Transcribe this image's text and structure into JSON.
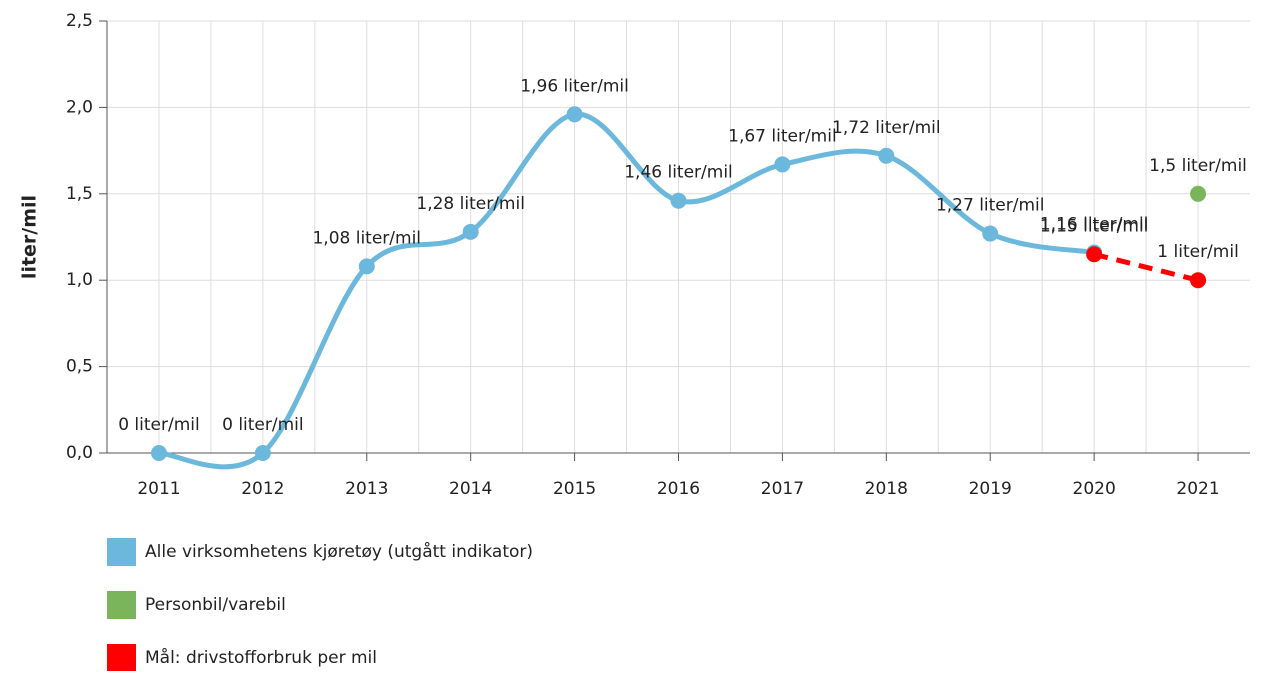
{
  "chart_data": {
    "type": "line",
    "y_label": "liter/mil",
    "categories": [
      "2011",
      "2012",
      "2013",
      "2014",
      "2015",
      "2016",
      "2017",
      "2018",
      "2019",
      "2020",
      "2021"
    ],
    "series": [
      {
        "name": "Alle virksomhetens kjøretøy (utgått indikator)",
        "color": "#6bb8dc",
        "style": "smooth",
        "values": [
          0,
          0,
          1.08,
          1.28,
          1.96,
          1.46,
          1.67,
          1.72,
          1.27,
          1.16,
          null
        ],
        "value_labels": [
          "0 liter/mil",
          "0 liter/mil",
          "1,08 liter/mil",
          "1,28 liter/mil",
          "1,96 liter/mil",
          "1,46 liter/mil",
          "1,67 liter/mil",
          "1,72 liter/mil",
          "1,27 liter/mil",
          "1,16 liter/mil",
          null
        ]
      },
      {
        "name": "Personbil/varebil",
        "color": "#7ab55c",
        "style": "straight",
        "values": [
          null,
          null,
          null,
          null,
          null,
          null,
          null,
          null,
          null,
          null,
          1.5
        ],
        "value_labels": [
          null,
          null,
          null,
          null,
          null,
          null,
          null,
          null,
          null,
          null,
          "1,5 liter/mil"
        ]
      },
      {
        "name": "Mål: drivstofforbruk per mil",
        "color": "#ff0000",
        "style": "dashed",
        "values": [
          null,
          null,
          null,
          null,
          null,
          null,
          null,
          null,
          null,
          1.15,
          1
        ],
        "value_labels": [
          null,
          null,
          null,
          null,
          null,
          null,
          null,
          null,
          null,
          "1,15 liter/mil",
          "1 liter/mil"
        ]
      }
    ],
    "ylim": [
      0,
      2.5
    ],
    "yticks": [
      {
        "value": 0,
        "label": "0,0"
      },
      {
        "value": 0.5,
        "label": "0,5"
      },
      {
        "value": 1,
        "label": "1,0"
      },
      {
        "value": 1.5,
        "label": "1,5"
      },
      {
        "value": 2,
        "label": "2,0"
      },
      {
        "value": 2.5,
        "label": "2,5"
      }
    ],
    "grid": true
  }
}
